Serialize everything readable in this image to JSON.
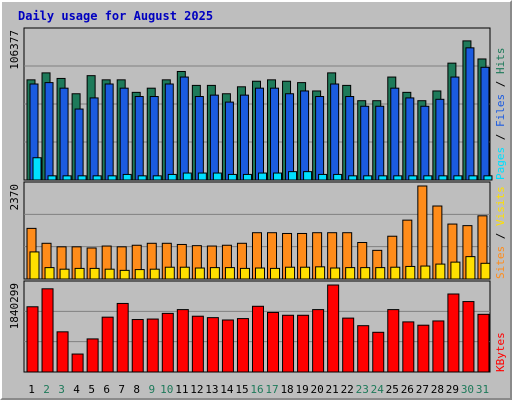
{
  "title": "Daily usage for August 2025",
  "colors": {
    "background": "#bebebe",
    "plot_bg": "#bebebe",
    "title": "#0000c0",
    "hits": "#1e7a5a",
    "files": "#1b5be0",
    "pages": "#00e0ff",
    "visits": "#ff8c1a",
    "sites": "#ffe000",
    "kbytes": "#ff0000",
    "weekend_label": "#1e7a5a",
    "weekday_label": "#000000"
  },
  "chart_data": [
    {
      "type": "bar",
      "panel": "hits-files-pages",
      "ylabel_max": "106377",
      "legend": [
        "Pages",
        "Files",
        "Hits"
      ],
      "ylim": [
        0,
        106377
      ],
      "categories": [
        "1",
        "2",
        "3",
        "4",
        "5",
        "6",
        "7",
        "8",
        "9",
        "10",
        "11",
        "12",
        "13",
        "14",
        "15",
        "16",
        "17",
        "18",
        "19",
        "20",
        "21",
        "22",
        "23",
        "24",
        "25",
        "26",
        "27",
        "28",
        "29",
        "30",
        "31"
      ],
      "weekend": [
        false,
        true,
        true,
        false,
        false,
        false,
        false,
        false,
        true,
        true,
        false,
        false,
        false,
        false,
        false,
        true,
        true,
        false,
        false,
        false,
        false,
        false,
        true,
        true,
        false,
        false,
        false,
        false,
        false,
        true,
        true
      ],
      "series": [
        {
          "name": "Hits",
          "values": [
            72000,
            77000,
            73000,
            62000,
            75000,
            72000,
            72000,
            63000,
            66000,
            72000,
            78000,
            68000,
            68000,
            62000,
            67000,
            71000,
            72000,
            71000,
            70000,
            64000,
            77000,
            68000,
            57000,
            57000,
            74000,
            63000,
            57000,
            64000,
            84000,
            100000,
            87000
          ]
        },
        {
          "name": "Files",
          "values": [
            69000,
            70000,
            66000,
            51000,
            59000,
            69000,
            66000,
            60000,
            60000,
            69000,
            74000,
            60000,
            61000,
            56000,
            61000,
            66000,
            66000,
            62000,
            64000,
            60000,
            69000,
            60000,
            53000,
            53000,
            66000,
            59000,
            53000,
            58000,
            74000,
            95000,
            81000
          ]
        },
        {
          "name": "Pages",
          "values": [
            16000,
            3000,
            3000,
            3000,
            3000,
            3000,
            4000,
            3000,
            3000,
            4000,
            5000,
            5000,
            5000,
            4000,
            4000,
            5000,
            5000,
            6000,
            6000,
            4000,
            4000,
            3000,
            3000,
            3000,
            3000,
            3000,
            3000,
            3000,
            3000,
            3000,
            3000
          ]
        }
      ]
    },
    {
      "type": "bar",
      "panel": "visits-sites",
      "ylabel_max": "2370",
      "legend": [
        "Sites",
        "Visits"
      ],
      "ylim": [
        0,
        2370
      ],
      "categories": [
        "1",
        "2",
        "3",
        "4",
        "5",
        "6",
        "7",
        "8",
        "9",
        "10",
        "11",
        "12",
        "13",
        "14",
        "15",
        "16",
        "17",
        "18",
        "19",
        "20",
        "21",
        "22",
        "23",
        "24",
        "25",
        "26",
        "27",
        "28",
        "29",
        "30",
        "31"
      ],
      "series": [
        {
          "name": "Visits",
          "values": [
            1290,
            910,
            820,
            820,
            790,
            840,
            820,
            860,
            910,
            910,
            880,
            850,
            840,
            860,
            910,
            1180,
            1180,
            1160,
            1160,
            1180,
            1180,
            1180,
            930,
            730,
            1090,
            1500,
            2370,
            1860,
            1400,
            1360,
            1610
          ]
        },
        {
          "name": "Sites",
          "values": [
            690,
            290,
            250,
            270,
            270,
            250,
            220,
            240,
            250,
            300,
            300,
            280,
            290,
            290,
            270,
            280,
            270,
            300,
            300,
            310,
            280,
            290,
            290,
            290,
            300,
            320,
            330,
            380,
            430,
            570,
            400
          ]
        }
      ]
    },
    {
      "type": "bar",
      "panel": "kbytes",
      "ylabel_max": "1840299",
      "legend": [
        "KBytes"
      ],
      "ylim": [
        0,
        1840299
      ],
      "categories": [
        "1",
        "2",
        "3",
        "4",
        "5",
        "6",
        "7",
        "8",
        "9",
        "10",
        "11",
        "12",
        "13",
        "14",
        "15",
        "16",
        "17",
        "18",
        "19",
        "20",
        "21",
        "22",
        "23",
        "24",
        "25",
        "26",
        "27",
        "28",
        "29",
        "30",
        "31"
      ],
      "series": [
        {
          "name": "KBytes",
          "values": [
            1380000,
            1760000,
            850000,
            380000,
            700000,
            1160000,
            1450000,
            1110000,
            1120000,
            1240000,
            1320000,
            1180000,
            1150000,
            1100000,
            1130000,
            1390000,
            1260000,
            1200000,
            1200000,
            1320000,
            1840000,
            1140000,
            980000,
            840000,
            1320000,
            1060000,
            990000,
            1080000,
            1650000,
            1490000,
            1220000
          ]
        }
      ]
    }
  ]
}
